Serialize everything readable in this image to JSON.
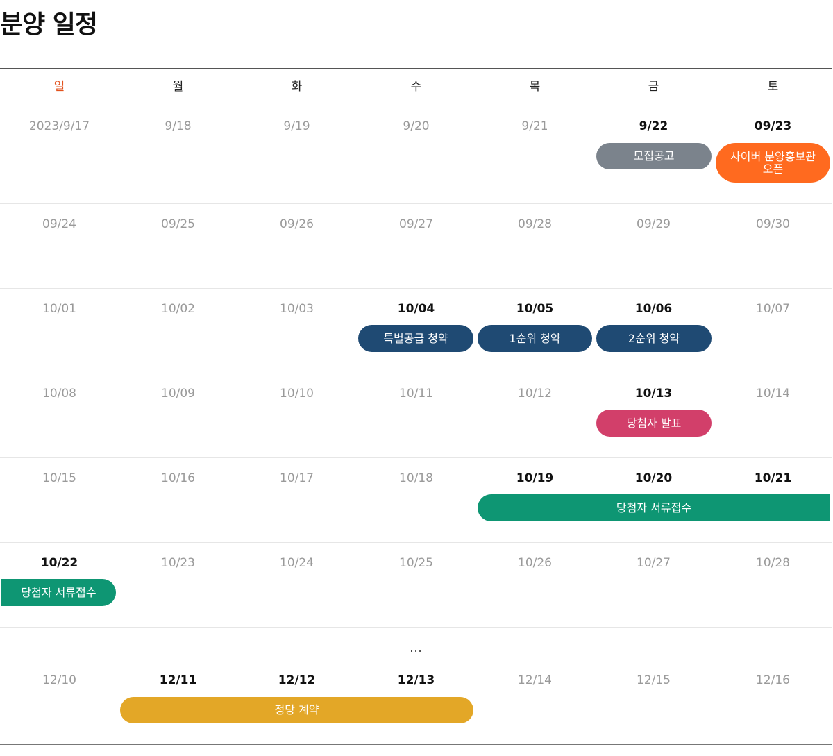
{
  "title": "분양 일정",
  "weekdays": [
    "일",
    "월",
    "화",
    "수",
    "목",
    "금",
    "토"
  ],
  "colors": {
    "sunday": "#e2521d",
    "gray_event": "#7b838c",
    "orange_event": "#ff6a1f",
    "navy_event": "#1f4a73",
    "pink_event": "#d23f6a",
    "green_event": "#0e9673",
    "gold_event": "#e3a727"
  },
  "weeks": [
    {
      "dates": [
        "2023/9/17",
        "9/18",
        "9/19",
        "9/20",
        "9/21",
        "9/22",
        "09/23"
      ]
    },
    {
      "dates": [
        "09/24",
        "09/25",
        "09/26",
        "09/27",
        "09/28",
        "09/29",
        "09/30"
      ]
    },
    {
      "dates": [
        "10/01",
        "10/02",
        "10/03",
        "10/04",
        "10/05",
        "10/06",
        "10/07"
      ]
    },
    {
      "dates": [
        "10/08",
        "10/09",
        "10/10",
        "10/11",
        "10/12",
        "10/13",
        "10/14"
      ]
    },
    {
      "dates": [
        "10/15",
        "10/16",
        "10/17",
        "10/18",
        "10/19",
        "10/20",
        "10/21"
      ]
    },
    {
      "dates": [
        "10/22",
        "10/23",
        "10/24",
        "10/25",
        "10/26",
        "10/27",
        "10/28"
      ]
    },
    {
      "dates": [
        "12/10",
        "12/11",
        "12/12",
        "12/13",
        "12/14",
        "12/15",
        "12/16"
      ]
    }
  ],
  "ellipsis": "...",
  "events": {
    "recruit_notice": "모집공고",
    "cyber_open_line1": "사이버 분양홍보관",
    "cyber_open_line2": "오픈",
    "special_supply": "특별공급 청약",
    "first_rank": "1순위 청약",
    "second_rank": "2순위 청약",
    "winner_announce": "당첨자 발표",
    "winner_docs": "당첨자 서류접수",
    "winner_docs_cont": "당첨자 서류접수",
    "contract": "정당 계약"
  }
}
